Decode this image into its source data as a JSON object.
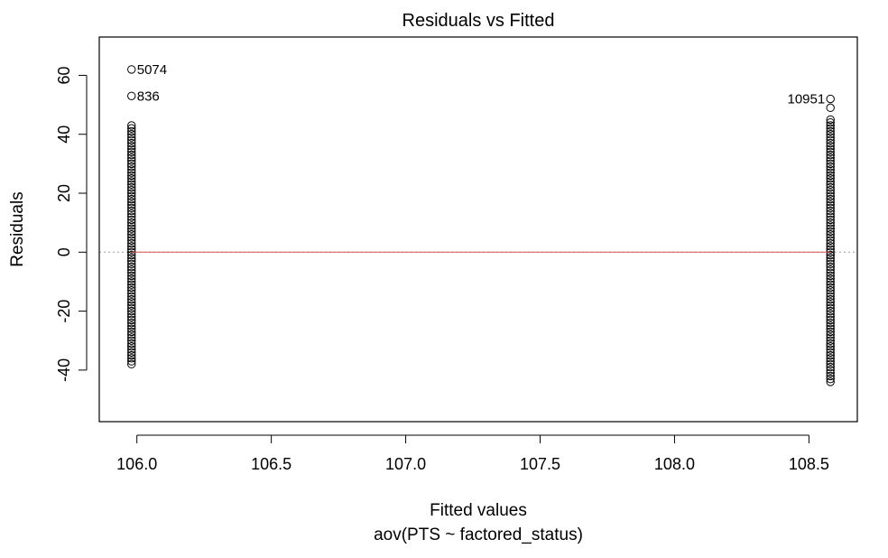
{
  "chart_data": {
    "type": "scatter",
    "title": "Residuals vs Fitted",
    "xlabel": "Fitted values",
    "subtitle": "aov(PTS ~ factored_status)",
    "ylabel": "Residuals",
    "xlim": [
      105.86,
      108.68
    ],
    "ylim": [
      -57.5,
      73
    ],
    "xticks": [
      106.0,
      106.5,
      107.0,
      107.5,
      108.0,
      108.5
    ],
    "xtick_labels": [
      "106.0",
      "106.5",
      "107.0",
      "107.5",
      "108.0",
      "108.5"
    ],
    "yticks": [
      -40,
      -20,
      0,
      20,
      40,
      60
    ],
    "ytick_labels": [
      "-40",
      "-20",
      "0",
      "20",
      "40",
      "60"
    ],
    "reference_line": {
      "y": 0,
      "style": "dotted",
      "color": "#a0a0a0"
    },
    "smooth_line": {
      "y": 0,
      "color": "#d9534f"
    },
    "groups": [
      {
        "fitted": 105.98,
        "residual_min": -38,
        "residual_max": 43
      },
      {
        "fitted": 108.58,
        "residual_min": -44,
        "residual_max": 45
      }
    ],
    "outliers": [
      {
        "x": 105.98,
        "y": 62,
        "label": "5074",
        "label_side": "right"
      },
      {
        "x": 105.98,
        "y": 53,
        "label": "836",
        "label_side": "right"
      },
      {
        "x": 108.58,
        "y": 52,
        "label": "10951",
        "label_side": "left"
      },
      {
        "x": 108.58,
        "y": 49,
        "label": "",
        "label_side": "none"
      }
    ]
  }
}
